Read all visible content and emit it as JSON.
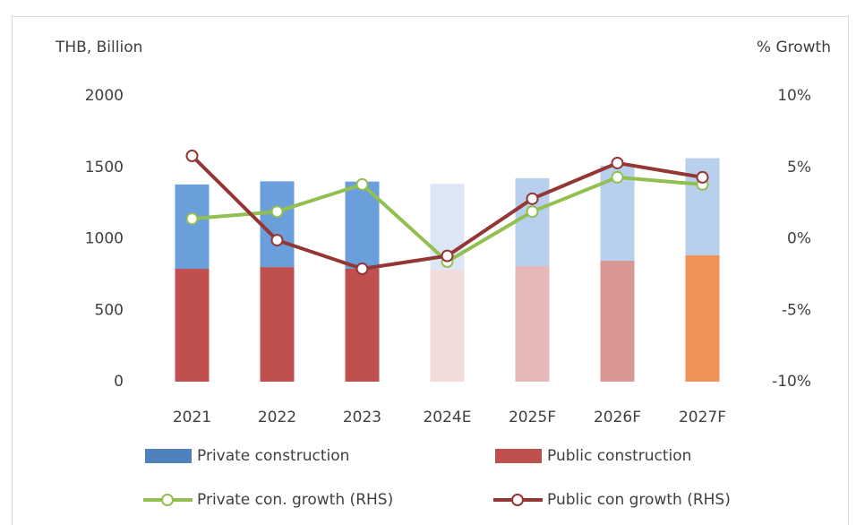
{
  "chart_data": {
    "type": "bar",
    "y_label": "THB, Billion",
    "y2_label": "% Growth",
    "categories": [
      "2021",
      "2022",
      "2023",
      "2024E",
      "2025F",
      "2026F",
      "2027F"
    ],
    "ylim": [
      0,
      2000
    ],
    "yticks": [
      0,
      500,
      1000,
      1500,
      2000
    ],
    "y2lim": [
      -10,
      10
    ],
    "y2ticks": [
      {
        "value": -10,
        "label": "-10%"
      },
      {
        "value": -5,
        "label": "-5%"
      },
      {
        "value": 0,
        "label": "0%"
      },
      {
        "value": 5,
        "label": "5%"
      },
      {
        "value": 10,
        "label": "10%"
      }
    ],
    "series": [
      {
        "name": "Public construction",
        "type": "bar",
        "color": "#c0504d",
        "colors": [
          "#c0504d",
          "#c0504d",
          "#c0504d",
          "#f2dcdb",
          "#e6b9b8",
          "#d99694",
          "#f0915a"
        ],
        "values": [
          790,
          802,
          790,
          784,
          809,
          846,
          884
        ]
      },
      {
        "name": "Private construction",
        "type": "bar",
        "color": "#4f81bd",
        "colors": [
          "#6a9fdc",
          "#6a9fdc",
          "#6a9fdc",
          "#dce6f5",
          "#b8cfee",
          "#b8cfee",
          "#b8cfee"
        ],
        "values": [
          590,
          600,
          610,
          600,
          615,
          665,
          680
        ]
      },
      {
        "name": "Private con. growth (RHS)",
        "type": "line",
        "axis": "y2",
        "color": "#92c050",
        "values": [
          1.4,
          1.9,
          3.8,
          -1.6,
          1.9,
          4.3,
          3.8
        ]
      },
      {
        "name": "Public con growth (RHS)",
        "type": "line",
        "axis": "y2",
        "color": "#943634",
        "values": [
          5.8,
          -0.1,
          -2.1,
          -1.2,
          2.8,
          5.3,
          4.3
        ]
      }
    ]
  }
}
